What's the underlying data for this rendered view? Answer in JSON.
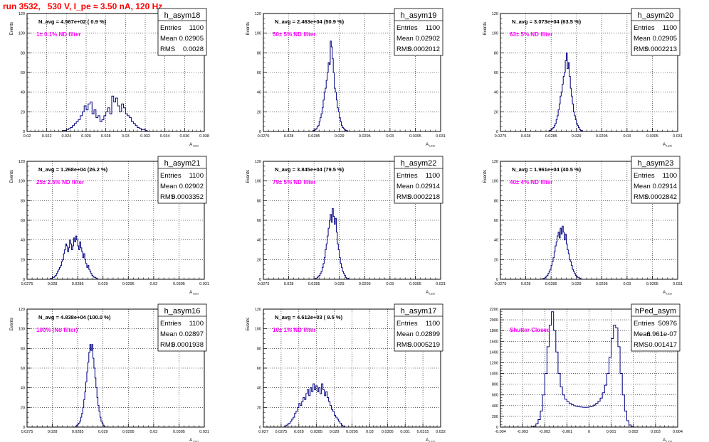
{
  "page": {
    "title": "run 3532,   530 V, I_pe ≈ 3.50 nA, 120 Hz"
  },
  "colors": {
    "histogram": "#000080",
    "title": "#ff0000",
    "annotation": "#ff00ff",
    "frame": "#000000",
    "grid": "#000000"
  },
  "chart_data": [
    {
      "type": "bar",
      "name": "h_asym18",
      "title": "h_asym18",
      "xlabel": "A_LED",
      "ylabel": "Events",
      "xlim": [
        0.02,
        0.038
      ],
      "ylim": [
        0,
        120
      ],
      "xticks": [
        0.02,
        0.022,
        0.024,
        0.026,
        0.028,
        0.03,
        0.032,
        0.034,
        0.036,
        0.038
      ],
      "xtick_labels": [
        "0.02",
        "0.022",
        "0.024",
        "0.026",
        "0.028",
        "0.03",
        "0.032",
        "0.034",
        "0.036",
        "0.038"
      ],
      "yticks": [
        0,
        20,
        40,
        60,
        80,
        100,
        120
      ],
      "grid": true,
      "stats": {
        "entries": "1100",
        "mean": "0.02905",
        "rms": "0.0028"
      },
      "navg": "N_avg = 4.567e+02 ( 0.9 %)",
      "filter": "1± 0.1% ND filter",
      "bin_width": 0.0002,
      "hist_start": 0.0236,
      "counts": [
        1,
        1,
        2,
        3,
        4,
        6,
        8,
        10,
        12,
        16,
        20,
        26,
        22,
        28,
        30,
        18,
        22,
        14,
        16,
        10,
        12,
        16,
        20,
        24,
        18,
        36,
        30,
        34,
        26,
        20,
        28,
        24,
        18,
        16,
        14,
        10,
        8,
        6,
        4,
        3,
        2,
        2,
        1
      ]
    },
    {
      "type": "bar",
      "name": "h_asym19",
      "title": "h_asym19",
      "xlabel": "A_LED",
      "ylabel": "Events",
      "xlim": [
        0.0275,
        0.031
      ],
      "ylim": [
        0,
        120
      ],
      "xticks": [
        0.0275,
        0.028,
        0.0285,
        0.029,
        0.0295,
        0.03,
        0.0305,
        0.031
      ],
      "xtick_labels": [
        "0.0275",
        "0.028",
        "0.0285",
        "0.029",
        "0.0295",
        "0.03",
        "0.0305",
        "0.031"
      ],
      "yticks": [
        0,
        20,
        40,
        60,
        80,
        100,
        120
      ],
      "grid": true,
      "stats": {
        "entries": "1100",
        "mean": "0.02902",
        "rms": "0.0002012"
      },
      "navg": "N_avg = 2.463e+04 (50.9 %)",
      "filter": "50± 5% ND filter",
      "bin_width": 2e-05,
      "hist_start": 0.02848,
      "counts": [
        1,
        1,
        2,
        3,
        5,
        6,
        10,
        14,
        18,
        24,
        32,
        40,
        44,
        52,
        60,
        70,
        68,
        92,
        86,
        74,
        60,
        44,
        40,
        32,
        24,
        20,
        14,
        10,
        6,
        4,
        3,
        2,
        1,
        1
      ]
    },
    {
      "type": "bar",
      "name": "h_asym20",
      "title": "h_asym20",
      "xlabel": "A_LED",
      "ylabel": "Events",
      "xlim": [
        0.0275,
        0.031
      ],
      "ylim": [
        0,
        120
      ],
      "xticks": [
        0.0275,
        0.028,
        0.0285,
        0.029,
        0.0295,
        0.03,
        0.0305,
        0.031
      ],
      "xtick_labels": [
        "0.0275",
        "0.028",
        "0.0285",
        "0.029",
        "0.0295",
        "0.03",
        "0.0305",
        "0.031"
      ],
      "yticks": [
        0,
        20,
        40,
        60,
        80,
        100,
        120
      ],
      "grid": true,
      "stats": {
        "entries": "1100",
        "mean": "0.02905",
        "rms": "0.0002213"
      },
      "navg": "N_avg = 3.073e+04 (63.5 %)",
      "filter": "63± 5% ND filter",
      "bin_width": 2e-05,
      "hist_start": 0.02846,
      "counts": [
        1,
        1,
        2,
        3,
        4,
        6,
        8,
        12,
        16,
        22,
        28,
        36,
        40,
        48,
        56,
        60,
        72,
        80,
        64,
        70,
        56,
        44,
        36,
        28,
        20,
        16,
        12,
        8,
        6,
        4,
        2,
        1,
        1
      ]
    },
    {
      "type": "bar",
      "name": "h_asym21",
      "title": "h_asym21",
      "xlabel": "A_LED",
      "ylabel": "Events",
      "xlim": [
        0.0275,
        0.031
      ],
      "ylim": [
        0,
        120
      ],
      "xticks": [
        0.0275,
        0.028,
        0.0285,
        0.029,
        0.0295,
        0.03,
        0.0305,
        0.031
      ],
      "xtick_labels": [
        "0.0275",
        "0.028",
        "0.0285",
        "0.029",
        "0.0295",
        "0.03",
        "0.0305",
        "0.031"
      ],
      "yticks": [
        0,
        20,
        40,
        60,
        80,
        100,
        120
      ],
      "grid": true,
      "stats": {
        "entries": "1100",
        "mean": "0.02902",
        "rms": "0.0003352"
      },
      "navg": "N_avg = 1.268e+04 (26.2 %)",
      "filter": "25± 2.5% ND filter",
      "bin_width": 2e-05,
      "hist_start": 0.02796,
      "counts": [
        1,
        1,
        2,
        2,
        3,
        4,
        6,
        8,
        10,
        12,
        14,
        18,
        20,
        26,
        30,
        36,
        34,
        28,
        32,
        40,
        36,
        30,
        34,
        42,
        38,
        44,
        40,
        34,
        30,
        38,
        32,
        28,
        22,
        26,
        20,
        16,
        12,
        14,
        10,
        8,
        6,
        4,
        3,
        2,
        2,
        1
      ]
    },
    {
      "type": "bar",
      "name": "h_asym22",
      "title": "h_asym22",
      "xlabel": "A_LED",
      "ylabel": "Events",
      "xlim": [
        0.0275,
        0.031
      ],
      "ylim": [
        0,
        120
      ],
      "xticks": [
        0.0275,
        0.028,
        0.0285,
        0.029,
        0.0295,
        0.03,
        0.0305,
        0.031
      ],
      "xtick_labels": [
        "0.0275",
        "0.028",
        "0.0285",
        "0.029",
        "0.0295",
        "0.03",
        "0.0305",
        "0.031"
      ],
      "yticks": [
        0,
        20,
        40,
        60,
        80,
        100,
        120
      ],
      "grid": true,
      "stats": {
        "entries": "1100",
        "mean": "0.02914",
        "rms": "0.0002218"
      },
      "navg": "N_avg = 3.845e+04 (79.5 %)",
      "filter": "79± 5% ND filter",
      "bin_width": 2e-05,
      "hist_start": 0.02852,
      "counts": [
        1,
        1,
        2,
        3,
        4,
        6,
        8,
        12,
        16,
        22,
        30,
        36,
        44,
        52,
        60,
        66,
        58,
        72,
        64,
        56,
        62,
        48,
        36,
        30,
        22,
        16,
        12,
        8,
        6,
        4,
        2,
        1,
        1
      ]
    },
    {
      "type": "bar",
      "name": "h_asym23",
      "title": "h_asym23",
      "xlabel": "A_LED",
      "ylabel": "Events",
      "xlim": [
        0.0275,
        0.031
      ],
      "ylim": [
        0,
        120
      ],
      "xticks": [
        0.0275,
        0.028,
        0.0285,
        0.029,
        0.0295,
        0.03,
        0.0305,
        0.031
      ],
      "xtick_labels": [
        "0.0275",
        "0.028",
        "0.0285",
        "0.029",
        "0.0295",
        "0.03",
        "0.0305",
        "0.031"
      ],
      "yticks": [
        0,
        20,
        40,
        60,
        80,
        100,
        120
      ],
      "grid": true,
      "stats": {
        "entries": "1100",
        "mean": "0.02914",
        "rms": "0.0002842"
      },
      "navg": "N_avg = 1.961e+04 (40.5 %)",
      "filter": "40± 4% ND filter",
      "bin_width": 2e-05,
      "hist_start": 0.02834,
      "counts": [
        1,
        1,
        2,
        3,
        4,
        6,
        8,
        10,
        14,
        18,
        22,
        28,
        34,
        38,
        44,
        48,
        42,
        52,
        46,
        54,
        48,
        40,
        46,
        36,
        30,
        26,
        20,
        18,
        14,
        10,
        8,
        6,
        4,
        3,
        2,
        2,
        1
      ]
    },
    {
      "type": "bar",
      "name": "h_asym16",
      "title": "h_asym16",
      "xlabel": "A_LED",
      "ylabel": "Events",
      "xlim": [
        0.0275,
        0.031
      ],
      "ylim": [
        0,
        120
      ],
      "xticks": [
        0.0275,
        0.028,
        0.0285,
        0.029,
        0.0295,
        0.03,
        0.0305,
        0.031
      ],
      "xtick_labels": [
        "0.0275",
        "0.028",
        "0.0285",
        "0.029",
        "0.0295",
        "0.03",
        "0.0305",
        "0.031"
      ],
      "yticks": [
        0,
        20,
        40,
        60,
        80,
        100,
        120
      ],
      "grid": true,
      "stats": {
        "entries": "1100",
        "mean": "0.02897",
        "rms": "0.0001938"
      },
      "navg": "N_avg = 4.838e+04 (100.0 %)",
      "filter": "100% (No filter)",
      "bin_width": 2e-05,
      "hist_start": 0.02846,
      "counts": [
        1,
        2,
        3,
        4,
        6,
        10,
        14,
        20,
        28,
        36,
        46,
        56,
        66,
        76,
        84,
        78,
        84,
        70,
        60,
        50,
        40,
        30,
        22,
        16,
        10,
        6,
        4,
        2,
        1
      ]
    },
    {
      "type": "bar",
      "name": "h_asym17",
      "title": "h_asym17",
      "xlabel": "A_LED",
      "ylabel": "Events",
      "xlim": [
        0.027,
        0.032
      ],
      "ylim": [
        0,
        120
      ],
      "xticks": [
        0.027,
        0.0275,
        0.028,
        0.0285,
        0.029,
        0.0295,
        0.03,
        0.0305,
        0.031,
        0.0315,
        0.032
      ],
      "xtick_labels": [
        "0.027",
        "0.0275",
        "0.028",
        "0.0285",
        "0.029",
        "0.0295",
        "0.03",
        "0.0305",
        "0.031",
        "0.0315",
        "0.032"
      ],
      "yticks": [
        0,
        20,
        40,
        60,
        80,
        100,
        120
      ],
      "grid": true,
      "stats": {
        "entries": "1100",
        "mean": "0.02899",
        "rms": "0.0005219"
      },
      "navg": "N_avg = 4.612e+03 ( 9.5 %)",
      "filter": "10± 1% ND filter",
      "bin_width": 4e-05,
      "hist_start": 0.0276,
      "counts": [
        1,
        2,
        3,
        4,
        6,
        8,
        10,
        14,
        16,
        20,
        24,
        22,
        26,
        30,
        28,
        34,
        38,
        32,
        40,
        36,
        44,
        38,
        42,
        36,
        40,
        34,
        44,
        38,
        32,
        36,
        30,
        26,
        22,
        18,
        16,
        12,
        10,
        8,
        6,
        4,
        2,
        1
      ]
    },
    {
      "type": "bar",
      "name": "hPed_asym",
      "title": "hPed_asym",
      "xlabel": "A_LED",
      "ylabel": "",
      "xlim": [
        -0.004,
        0.004
      ],
      "ylim": [
        0,
        2200
      ],
      "xticks": [
        -0.004,
        -0.003,
        -0.002,
        -0.001,
        0,
        0.001,
        0.002,
        0.003,
        0.004
      ],
      "xtick_labels": [
        "-0.004",
        "-0.003",
        "-0.002",
        "-0.001",
        "0",
        "0.001",
        "0.002",
        "0.003",
        "0.004"
      ],
      "yticks": [
        0,
        200,
        400,
        600,
        800,
        1000,
        1200,
        1400,
        1600,
        1800,
        2000,
        2200
      ],
      "grid": true,
      "stats": {
        "entries": "50976",
        "mean": "6.961e-07",
        "rms": "0.001417"
      },
      "navg": "",
      "filter": "Shutter Closed",
      "bin_width": 0.0001,
      "hist_start": -0.0026,
      "counts": [
        5,
        20,
        60,
        140,
        300,
        600,
        1000,
        1500,
        1900,
        2150,
        1800,
        1400,
        1000,
        750,
        600,
        520,
        470,
        440,
        420,
        400,
        390,
        380,
        375,
        370,
        368,
        370,
        380,
        390,
        410,
        440,
        480,
        540,
        640,
        780,
        1000,
        1300,
        1650,
        1900,
        1850,
        1500,
        1000,
        600,
        300,
        120,
        40,
        10
      ]
    }
  ]
}
